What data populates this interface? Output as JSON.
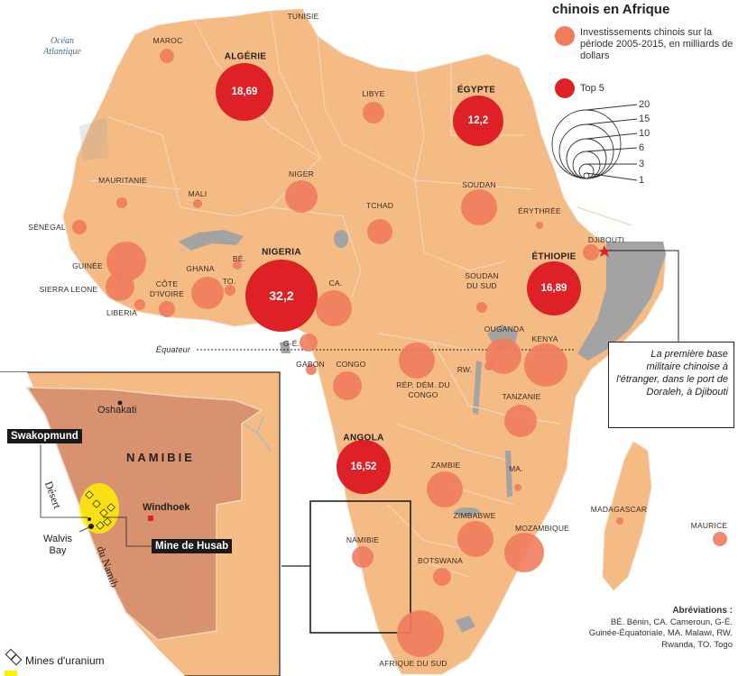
{
  "legend": {
    "title": "chinois en Afrique",
    "investments_label": "Investissements chinois sur la période 2005-2015, en milliards de dollars",
    "top5_label": "Top 5",
    "size_scale": [
      "20",
      "15",
      "10",
      "6",
      "3",
      "1"
    ],
    "colors": {
      "investment": "#f07c5e",
      "top5": "#dd2126",
      "land": "#f5bb84",
      "ocean": "#ffffff",
      "lake": "#a3a3a3"
    }
  },
  "oceans": {
    "atlantic": "Océan Atlantique"
  },
  "equator_label": "Équateur",
  "top5": [
    {
      "name": "ALGÉRIE",
      "value": "18,69"
    },
    {
      "name": "ÉGYPTE",
      "value": "12,2"
    },
    {
      "name": "NIGERIA",
      "value": "32,2"
    },
    {
      "name": "ÉTHIOPIE",
      "value": "16,89"
    },
    {
      "name": "ANGOLA",
      "value": "16,52"
    }
  ],
  "countries": [
    "TUNISIE",
    "MAROC",
    "LIBYE",
    "MAURITANIE",
    "MALI",
    "NIGER",
    "TCHAD",
    "SOUDAN",
    "ÉRYTHRÉE",
    "DJIBOUTI",
    "SÉNÉGAL",
    "GUINÉE",
    "SIERRA LEONE",
    "LIBERIA",
    "CÔTE D'IVOIRE",
    "GHANA",
    "BÉ.",
    "TO.",
    "CA.",
    "G-É.",
    "GABON",
    "CONGO",
    "RÉP. DÉM. DU CONGO",
    "SOUDAN DU SUD",
    "OUGANDA",
    "KENYA",
    "RW.",
    "TANZANIE",
    "ZAMBIE",
    "MA.",
    "ZIMBABWE",
    "MOZAMBIQUE",
    "MADAGASCAR",
    "MAURICE",
    "NAMIBIE",
    "BOTSWANA",
    "AFRIQUE DU SUD"
  ],
  "callout": "La première base militaire chinoise à l'étranger, dans le port de Doraleh, à Djibouti",
  "abbreviations": {
    "title": "Abréviations :",
    "text": "BÉ. Bénin, CA. Cameroun, G-É. Guinée-Équatoriale, MA. Malawi, RW. Rwanda, TO. Togo"
  },
  "inset": {
    "country": "NAMIBIE",
    "cities": [
      "Oshakati",
      "Windhoek",
      "Walvis Bay"
    ],
    "walvis_line1": "Walvis",
    "walvis_line2": "Bay",
    "desert_line1": "Désert",
    "desert_line2": "du Namib",
    "tags": [
      "Swakopmund",
      "Mine de Husab"
    ],
    "uranium_legend": "Mines d'uranium"
  }
}
